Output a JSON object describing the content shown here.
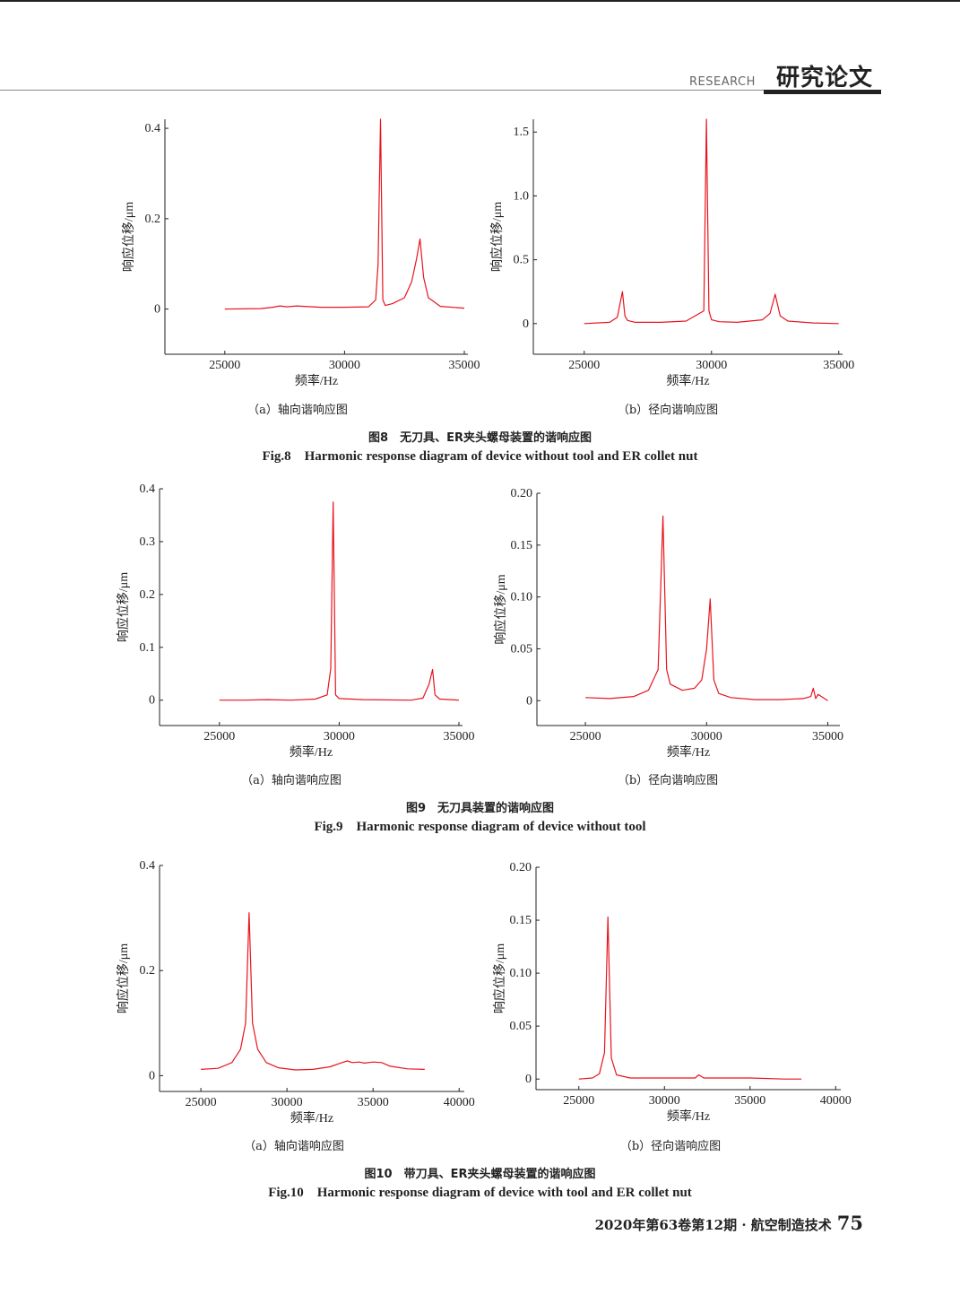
{
  "header": {
    "research_label": "RESEARCH",
    "section_title": "研究论文"
  },
  "figures": [
    {
      "caption_cn": "图8　无刀具、ER夹头螺母装置的谐响应图",
      "caption_en": "Fig.8　Harmonic response diagram of device without tool and ER collet nut",
      "sub_a": "（a）轴向谐响应图",
      "sub_b": "（b）径向谐响应图"
    },
    {
      "caption_cn": "图9　无刀具装置的谐响应图",
      "caption_en": "Fig.9　Harmonic response diagram of device without tool",
      "sub_a": "（a）轴向谐响应图",
      "sub_b": "（b）径向谐响应图"
    },
    {
      "caption_cn": "图10　带刀具、ER夹头螺母装置的谐响应图",
      "caption_en": "Fig.10　Harmonic response diagram of device with tool and ER collet nut",
      "sub_a": "（a）轴向谐响应图",
      "sub_b": "（b）径向谐响应图"
    }
  ],
  "footer": {
    "journal": "2020年第63卷第12期 · 航空制造技术",
    "page": "75"
  },
  "chart_data": [
    {
      "id": "fig8a",
      "type": "line",
      "color": "#e8141e",
      "xlabel": "频率/Hz",
      "ylabel": "响应位移/μm",
      "xticks": [
        25000,
        30000,
        35000
      ],
      "xtick_labels": [
        "25000",
        "30000",
        "35000"
      ],
      "yticks": [
        0,
        0.2,
        0.4
      ],
      "ytick_labels": [
        "0",
        "0.2",
        "0.4"
      ],
      "ylim": [
        -0.1,
        0.42
      ],
      "x": [
        25000,
        26500,
        27000,
        27300,
        27600,
        28000,
        28300,
        29000,
        30000,
        31000,
        31300,
        31400,
        31500,
        31600,
        31700,
        32000,
        32500,
        32800,
        33000,
        33150,
        33300,
        33500,
        34000,
        35000
      ],
      "y": [
        0.0,
        0.001,
        0.004,
        0.007,
        0.005,
        0.007,
        0.006,
        0.004,
        0.004,
        0.005,
        0.02,
        0.1,
        0.42,
        0.02,
        0.008,
        0.012,
        0.025,
        0.06,
        0.11,
        0.155,
        0.07,
        0.025,
        0.006,
        0.002
      ]
    },
    {
      "id": "fig8b",
      "type": "line",
      "color": "#e8141e",
      "xlabel": "频率/Hz",
      "ylabel": "响应位移/μm",
      "xticks": [
        25000,
        30000,
        35000
      ],
      "xtick_labels": [
        "25000",
        "30000",
        "35000"
      ],
      "yticks": [
        0,
        0.5,
        1.0,
        1.5
      ],
      "ytick_labels": [
        "0",
        "0.5",
        "1.0",
        "1.5"
      ],
      "ylim": [
        -0.24,
        1.6
      ],
      "x": [
        25000,
        26000,
        26300,
        26500,
        26600,
        26700,
        27000,
        28000,
        29000,
        29700,
        29800,
        29900,
        30000,
        30300,
        31000,
        32000,
        32300,
        32500,
        32700,
        33000,
        34000,
        35000
      ],
      "y": [
        0.0,
        0.01,
        0.05,
        0.25,
        0.06,
        0.025,
        0.01,
        0.01,
        0.02,
        0.1,
        1.6,
        0.1,
        0.03,
        0.015,
        0.01,
        0.03,
        0.08,
        0.23,
        0.06,
        0.02,
        0.005,
        0.0
      ]
    },
    {
      "id": "fig9a",
      "type": "line",
      "color": "#e8141e",
      "xlabel": "频率/Hz",
      "ylabel": "响应位移/μm",
      "xticks": [
        25000,
        30000,
        35000
      ],
      "xtick_labels": [
        "25000",
        "30000",
        "35000"
      ],
      "yticks": [
        0,
        0.1,
        0.2,
        0.3,
        0.4
      ],
      "ytick_labels": [
        "0",
        "0.1",
        "0.2",
        "0.3",
        "0.4"
      ],
      "ylim": [
        -0.048,
        0.4
      ],
      "x": [
        25000,
        26000,
        27000,
        28000,
        29000,
        29500,
        29650,
        29750,
        29850,
        30000,
        31000,
        33000,
        33500,
        33750,
        33900,
        34000,
        34200,
        35000
      ],
      "y": [
        0.0,
        0.0,
        0.001,
        0.0,
        0.002,
        0.01,
        0.06,
        0.375,
        0.01,
        0.003,
        0.001,
        0.0,
        0.004,
        0.03,
        0.058,
        0.01,
        0.002,
        0.0
      ]
    },
    {
      "id": "fig9b",
      "type": "line",
      "color": "#e8141e",
      "xlabel": "频率/Hz",
      "ylabel": "响应位移/μm",
      "xticks": [
        25000,
        30000,
        35000
      ],
      "xtick_labels": [
        "25000",
        "30000",
        "35000"
      ],
      "yticks": [
        0,
        0.05,
        0.1,
        0.15,
        0.2
      ],
      "ytick_labels": [
        "0",
        "0.05",
        "0.10",
        "0.15",
        "0.20"
      ],
      "ylim": [
        -0.024,
        0.2
      ],
      "x": [
        25000,
        26000,
        27000,
        27600,
        28000,
        28200,
        28350,
        28500,
        29000,
        29500,
        29800,
        30000,
        30150,
        30300,
        30500,
        31000,
        32000,
        33000,
        34000,
        34300,
        34400,
        34500,
        34600,
        35000
      ],
      "y": [
        0.003,
        0.002,
        0.004,
        0.01,
        0.03,
        0.178,
        0.03,
        0.016,
        0.01,
        0.012,
        0.02,
        0.05,
        0.098,
        0.02,
        0.007,
        0.003,
        0.001,
        0.001,
        0.002,
        0.004,
        0.012,
        0.002,
        0.006,
        0.0
      ]
    },
    {
      "id": "fig10a",
      "type": "line",
      "color": "#e8141e",
      "xlabel": "频率/Hz",
      "ylabel": "响应位移/μm",
      "xticks": [
        25000,
        30000,
        35000,
        40000
      ],
      "xtick_labels": [
        "25000",
        "30000",
        "35000",
        "40000"
      ],
      "yticks": [
        0,
        0.2,
        0.4
      ],
      "ytick_labels": [
        "0",
        "0.2",
        "0.4"
      ],
      "ylim": [
        -0.03,
        0.4
      ],
      "x": [
        25000,
        26000,
        26800,
        27300,
        27600,
        27800,
        28000,
        28300,
        28800,
        29500,
        30500,
        31500,
        32500,
        33200,
        33500,
        33800,
        34200,
        34500,
        35000,
        35500,
        36000,
        37000,
        38000
      ],
      "y": [
        0.012,
        0.014,
        0.025,
        0.05,
        0.1,
        0.31,
        0.1,
        0.05,
        0.025,
        0.015,
        0.011,
        0.012,
        0.017,
        0.025,
        0.028,
        0.025,
        0.026,
        0.024,
        0.026,
        0.025,
        0.018,
        0.013,
        0.012
      ]
    },
    {
      "id": "fig10b",
      "type": "line",
      "color": "#e8141e",
      "xlabel": "频率/Hz",
      "ylabel": "响应位移/μm",
      "xticks": [
        25000,
        30000,
        35000,
        40000
      ],
      "xtick_labels": [
        "25000",
        "30000",
        "35000",
        "40000"
      ],
      "yticks": [
        0,
        0.05,
        0.1,
        0.15,
        0.2
      ],
      "ytick_labels": [
        "0",
        "0.05",
        "0.10",
        "0.15",
        "0.20"
      ],
      "ylim": [
        -0.01,
        0.2
      ],
      "x": [
        25000,
        25800,
        26200,
        26500,
        26700,
        26900,
        27200,
        28000,
        30000,
        31800,
        32000,
        32300,
        33000,
        35000,
        37000,
        38000
      ],
      "y": [
        0.0,
        0.001,
        0.005,
        0.025,
        0.153,
        0.02,
        0.004,
        0.001,
        0.001,
        0.001,
        0.004,
        0.001,
        0.001,
        0.001,
        0.0,
        0.0
      ]
    }
  ]
}
